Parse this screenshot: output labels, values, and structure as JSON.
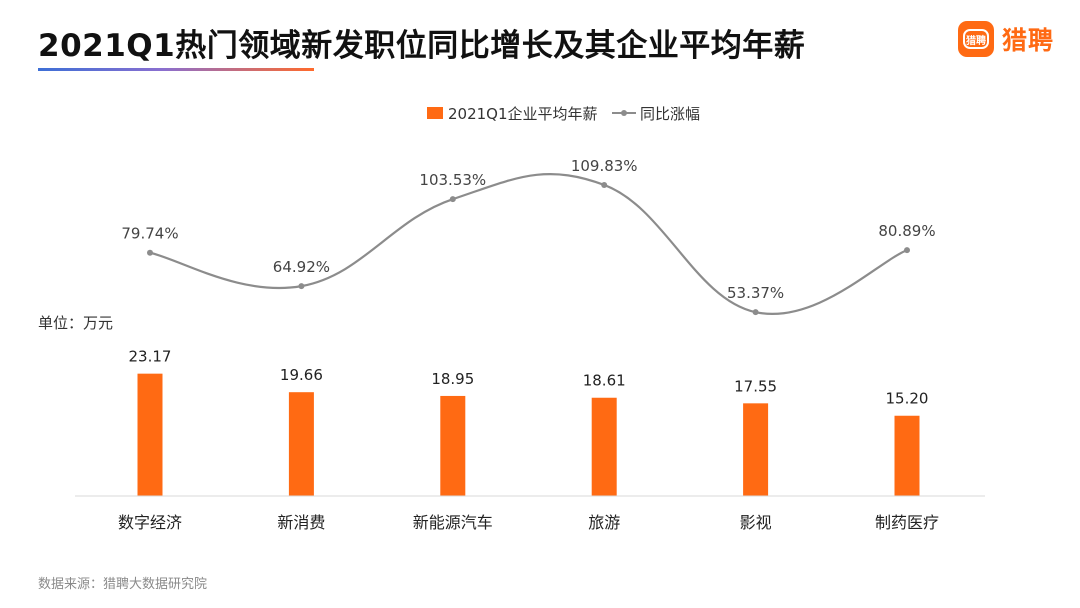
{
  "header": {
    "title": "2021Q1热门领域新发职位同比增长及其企业平均年薪",
    "logo_badge_text": "猎聘",
    "logo_text": "猎聘"
  },
  "unit_label": "单位：万元",
  "source_label": "数据来源：猎聘大数据研究院",
  "colors": {
    "bar": "#ff6a13",
    "line": "#8c8c8c",
    "accent": "#ff6a13"
  },
  "chart_data": {
    "type": "bar",
    "categories": [
      "数字经济",
      "新消费",
      "新能源汽车",
      "旅游",
      "影视",
      "制药医疗"
    ],
    "series": [
      {
        "name": "2021Q1企业平均年薪",
        "type": "bar",
        "values": [
          23.17,
          19.66,
          18.95,
          18.61,
          17.55,
          15.2
        ],
        "labels": [
          "23.17",
          "19.66",
          "18.95",
          "18.61",
          "17.55",
          "15.20"
        ]
      },
      {
        "name": "同比涨幅",
        "type": "line",
        "values": [
          79.74,
          64.92,
          103.53,
          109.83,
          53.37,
          80.89
        ],
        "labels": [
          "79.74%",
          "64.92%",
          "103.53%",
          "109.83%",
          "53.37%",
          "80.89%"
        ]
      }
    ],
    "legend_position": "top-center",
    "bar_ylim": [
      0,
      27
    ],
    "line_ylim": [
      0,
      130
    ],
    "grid": false
  }
}
